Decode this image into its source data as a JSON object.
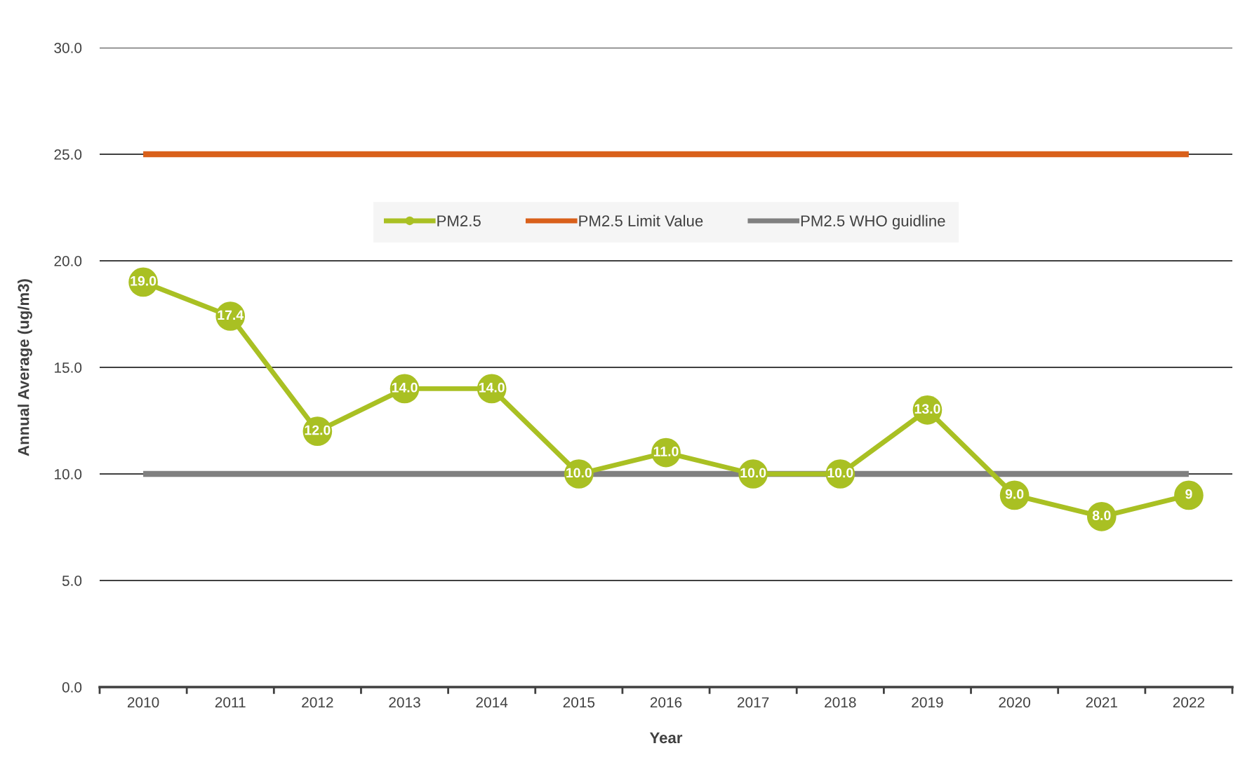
{
  "chart_data": {
    "type": "line",
    "xlabel": "Year",
    "ylabel": "Annual Average (ug/m3)",
    "categories": [
      "2010",
      "2011",
      "2012",
      "2013",
      "2014",
      "2015",
      "2016",
      "2017",
      "2018",
      "2019",
      "2020",
      "2021",
      "2022"
    ],
    "series": [
      {
        "name": "PM2.5",
        "color": "#a9c023",
        "marker": "circle",
        "values": [
          19.0,
          17.4,
          12.0,
          14.0,
          14.0,
          10.0,
          11.0,
          10.0,
          10.0,
          13.0,
          9.0,
          8.0,
          9
        ],
        "value_labels": [
          "19.0",
          "17.4",
          "12.0",
          "14.0",
          "14.0",
          "10.0",
          "11.0",
          "10.0",
          "10.0",
          "13.0",
          "9.0",
          "8.0",
          "9"
        ]
      },
      {
        "name": "PM2.5 Limit Value",
        "color": "#d9601a",
        "values": [
          25,
          25,
          25,
          25,
          25,
          25,
          25,
          25,
          25,
          25,
          25,
          25,
          25
        ]
      },
      {
        "name": "PM2.5 WHO guidline",
        "color": "#808080",
        "values": [
          10,
          10,
          10,
          10,
          10,
          10,
          10,
          10,
          10,
          10,
          10,
          10,
          10
        ]
      }
    ],
    "ylim": [
      0,
      30
    ],
    "yticks": [
      {
        "value": 0,
        "label": "0.0"
      },
      {
        "value": 5,
        "label": "5.0"
      },
      {
        "value": 10,
        "label": "10.0"
      },
      {
        "value": 15,
        "label": "15.0"
      },
      {
        "value": 20,
        "label": "20.0"
      },
      {
        "value": 25,
        "label": "25.0"
      },
      {
        "value": 30,
        "label": "30.0"
      }
    ],
    "grid": "y",
    "legend": "top",
    "line_style": "solid"
  }
}
